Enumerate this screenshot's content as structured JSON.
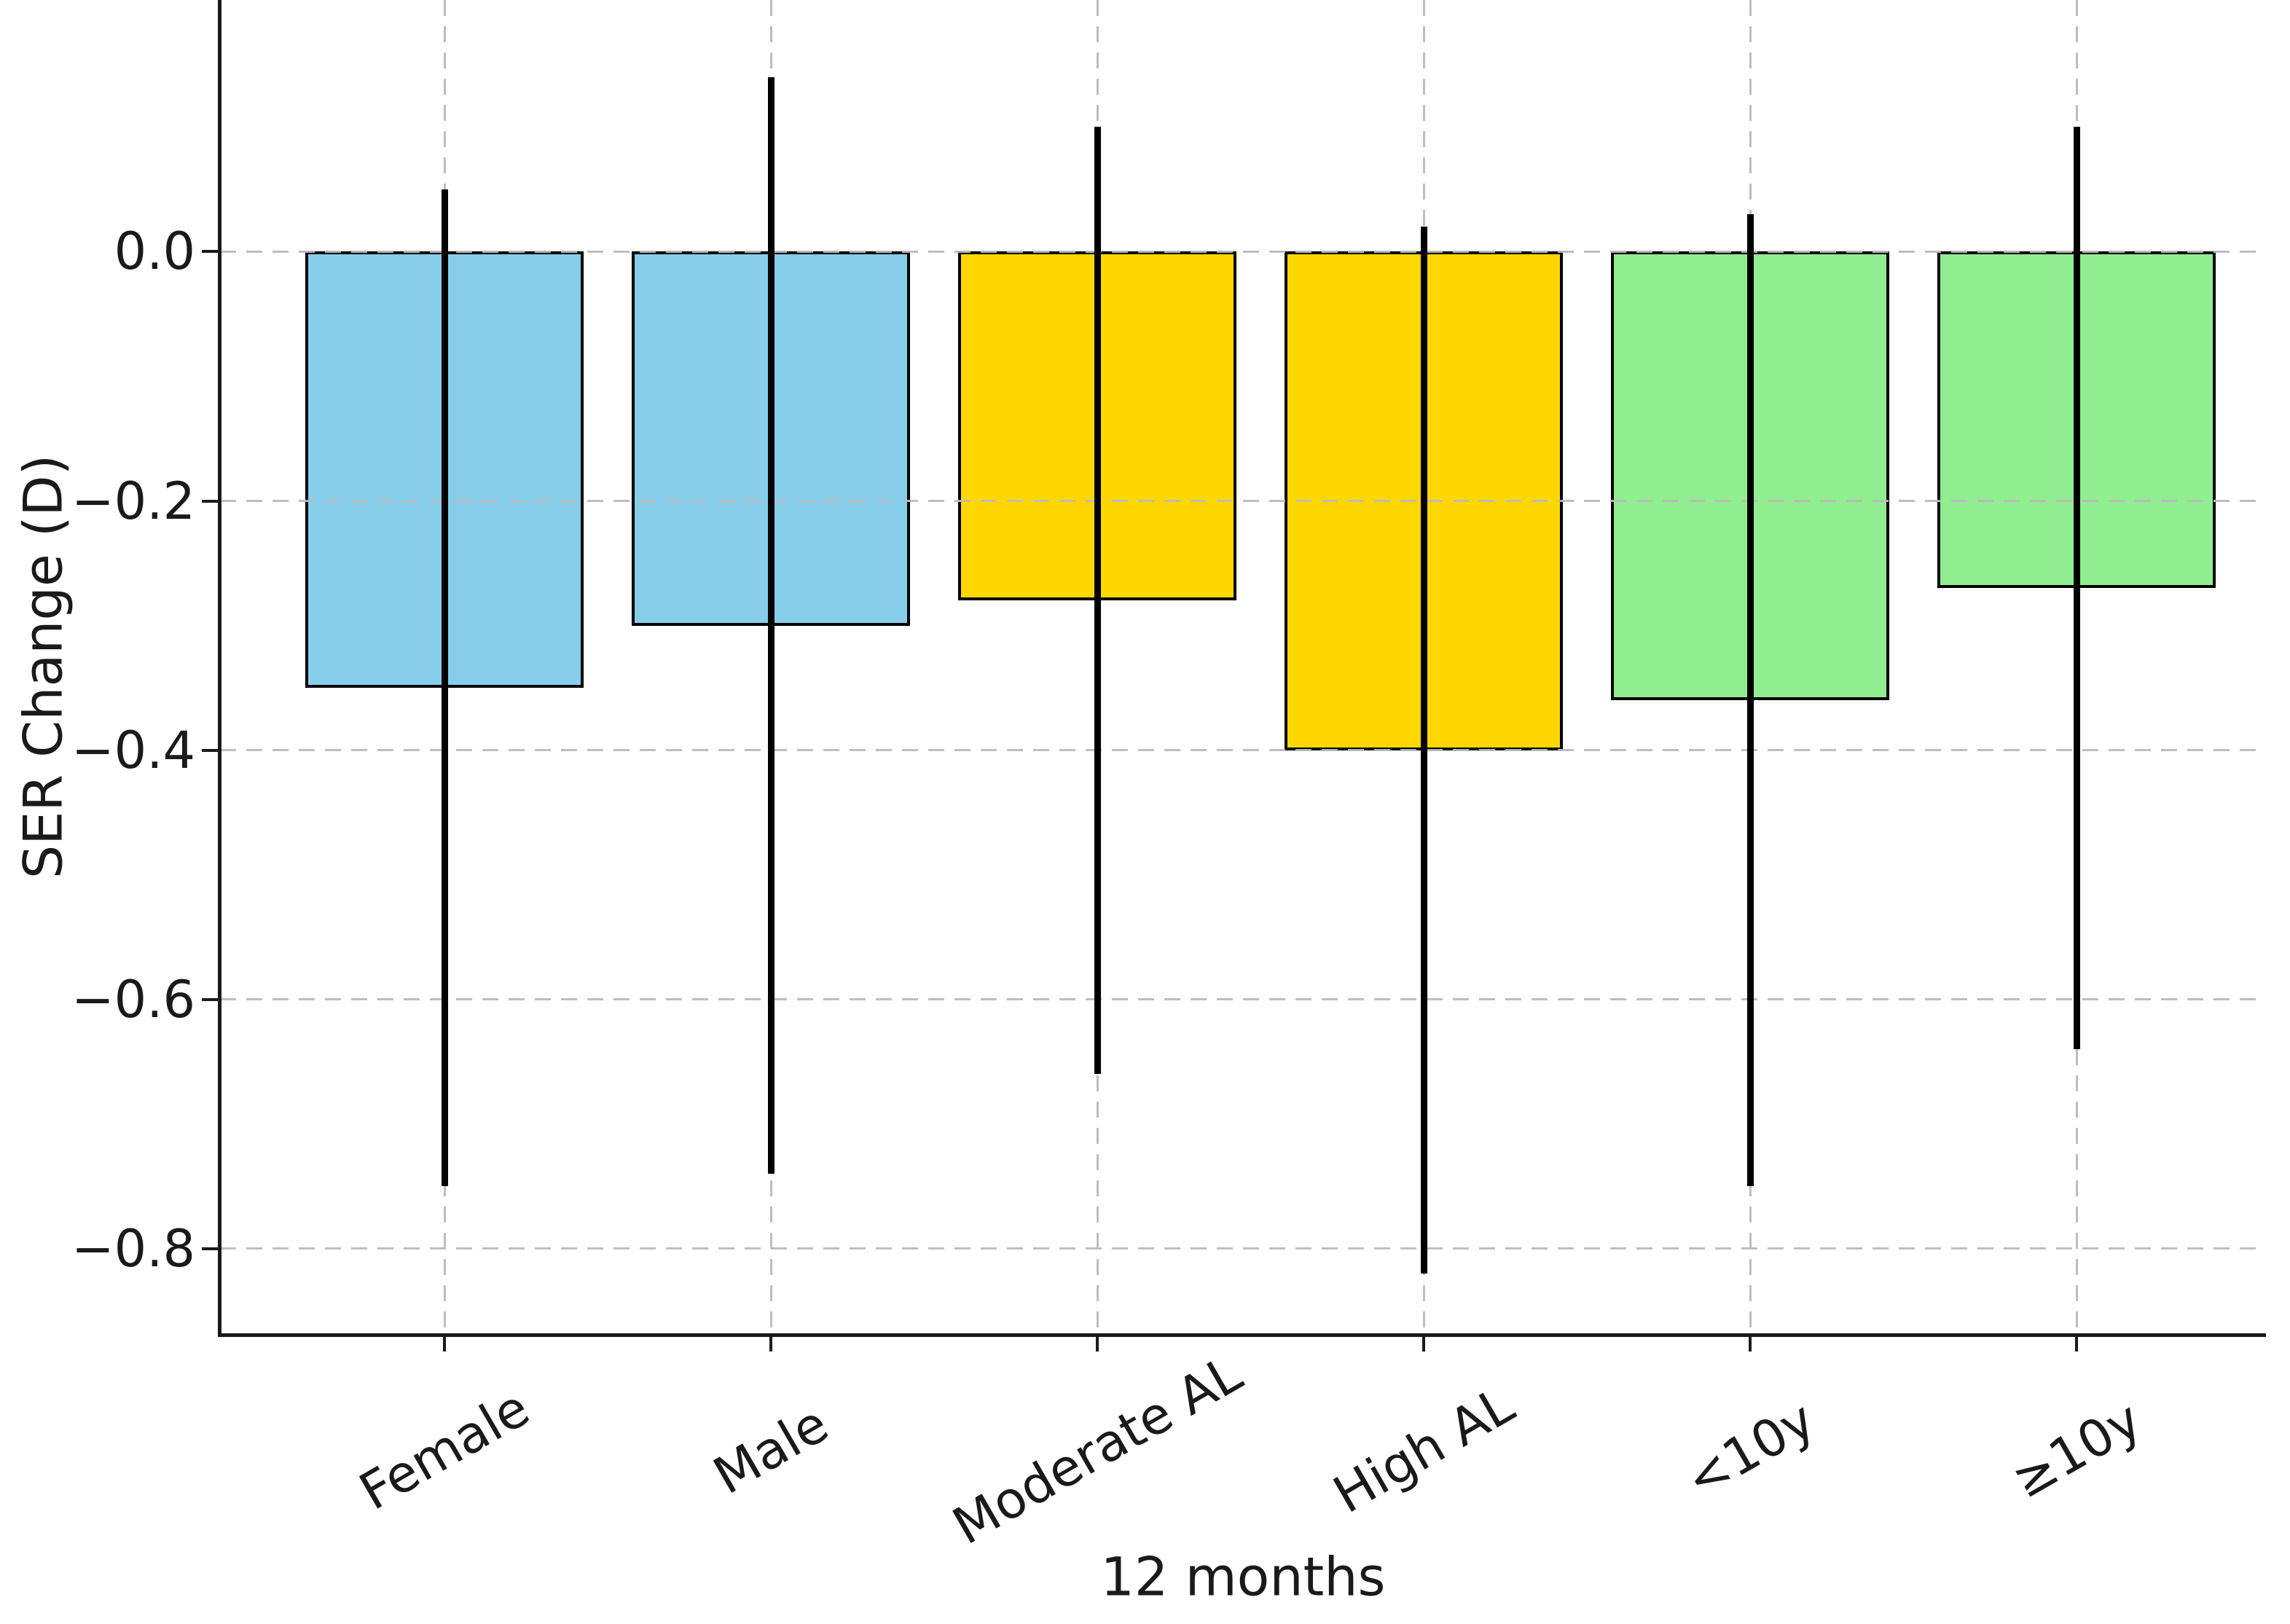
{
  "chart_data": {
    "type": "bar",
    "title": "",
    "xlabel": "12 months",
    "ylabel": "SER Change (D)",
    "categories": [
      "Female",
      "Male",
      "Moderate AL",
      "High AL",
      "<10y",
      "≥10y"
    ],
    "values": [
      -0.35,
      -0.3,
      -0.28,
      -0.4,
      -0.36,
      -0.27
    ],
    "errors": [
      0.4,
      0.44,
      0.38,
      0.42,
      0.39,
      0.37
    ],
    "error_bar_tops": [
      0.05,
      0.14,
      0.1,
      0.02,
      0.03,
      0.1
    ],
    "error_bar_bottoms": [
      -0.75,
      -0.74,
      -0.66,
      -0.82,
      -0.75,
      -0.64
    ],
    "bar_colors": [
      "#87CEEB",
      "#87CEEB",
      "#FFD700",
      "#FFD700",
      "#90EE90",
      "#90EE90"
    ],
    "edge_color": "#000000",
    "error_bar_color": "#000000",
    "yticks": [
      0.0,
      -0.2,
      -0.4,
      -0.6,
      -0.8
    ],
    "ytick_labels": [
      "0.0",
      "−0.2",
      "−0.4",
      "−0.6",
      "−0.8"
    ],
    "ylim": [
      -0.868,
      0.202
    ],
    "grid": true,
    "grid_style": "dashed",
    "grid_color": "#bbbbbb",
    "legend_position": "none",
    "bar_baseline": 0.0
  }
}
